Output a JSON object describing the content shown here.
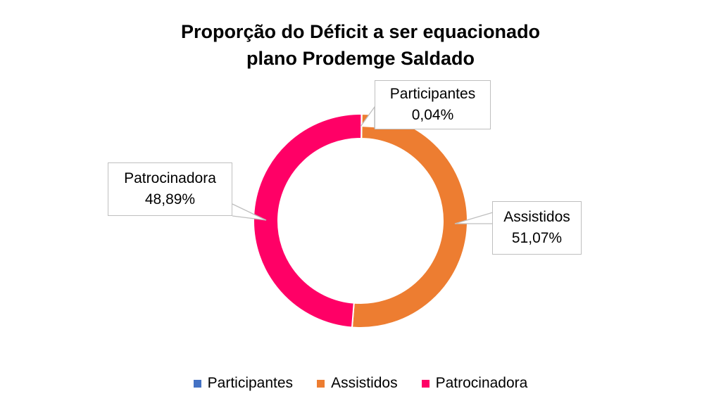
{
  "title": {
    "line1": "Proporção do Déficit a ser equacionado",
    "line2": "plano Prodemge Saldado"
  },
  "labels": {
    "participantes": {
      "name": "Participantes",
      "value": "0,04%"
    },
    "assistidos": {
      "name": "Assistidos",
      "value": "51,07%"
    },
    "patrocinadora": {
      "name": "Patrocinadora",
      "value": "48,89%"
    }
  },
  "legend": [
    {
      "label": "Participantes",
      "color": "#4472c4"
    },
    {
      "label": "Assistidos",
      "color": "#ed7d31"
    },
    {
      "label": "Patrocinadora",
      "color": "#ff0066"
    }
  ],
  "chart_data": {
    "type": "pie",
    "subtype": "doughnut",
    "title": "Proporção do Déficit a ser equacionado plano Prodemge Saldado",
    "categories": [
      "Participantes",
      "Assistidos",
      "Patrocinadora"
    ],
    "values": [
      0.04,
      51.07,
      48.89
    ],
    "unit": "%",
    "colors": [
      "#4472c4",
      "#ed7d31",
      "#ff0066"
    ],
    "data_labels": [
      "Participantes 0,04%",
      "Assistidos 51,07%",
      "Patrocinadora 48,89%"
    ],
    "legend_position": "bottom"
  }
}
